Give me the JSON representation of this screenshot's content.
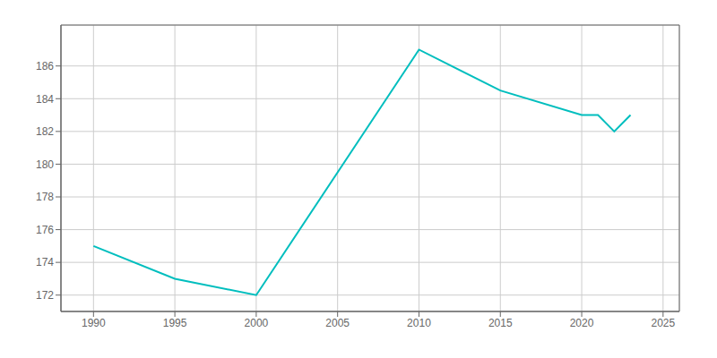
{
  "chart_data": {
    "type": "line",
    "x": [
      1990,
      1995,
      2000,
      2010,
      2015,
      2020,
      2021,
      2022,
      2023
    ],
    "values": [
      175,
      173,
      172,
      187,
      184.5,
      183,
      183,
      182,
      183
    ],
    "color": "#00BEBE",
    "xlim": [
      1988,
      2026
    ],
    "ylim": [
      171,
      188.5
    ],
    "xticks": [
      1990,
      1995,
      2000,
      2005,
      2010,
      2015,
      2020,
      2025
    ],
    "yticks": [
      172,
      174,
      176,
      178,
      180,
      182,
      184,
      186
    ],
    "grid": true
  }
}
